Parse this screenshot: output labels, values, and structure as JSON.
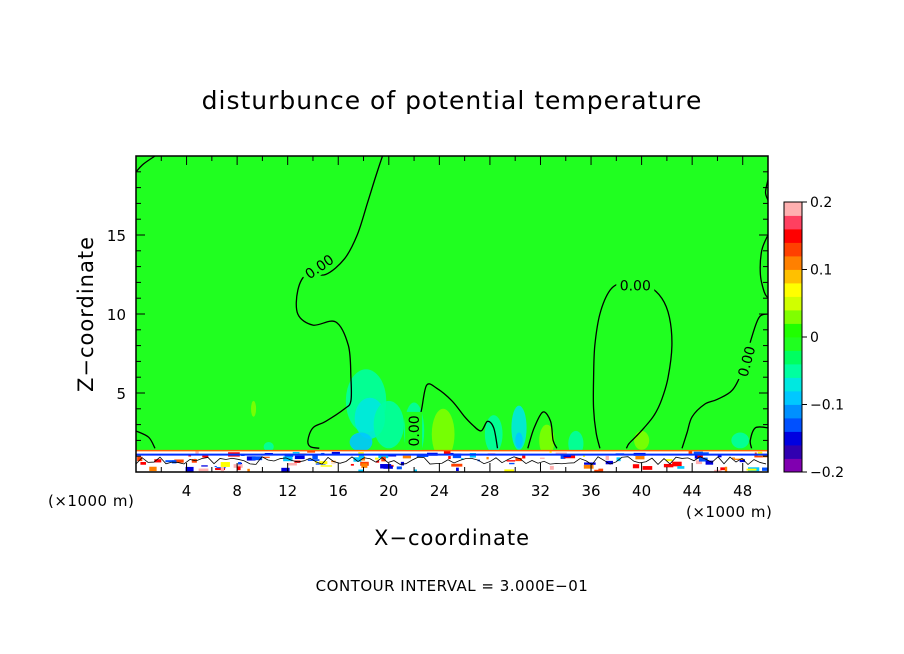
{
  "chart_data": {
    "type": "heatmap",
    "title": "disturbunce of potential temperature",
    "xlabel": "X−coordinate",
    "ylabel": "Z−coordinate",
    "x_unit": "(×1000 m)",
    "z_unit": "(×1000 m)",
    "xlim": [
      0,
      50
    ],
    "ylim": [
      0,
      20
    ],
    "x_ticks": [
      4,
      8,
      12,
      16,
      20,
      24,
      28,
      32,
      36,
      40,
      44,
      48
    ],
    "y_ticks": [
      5,
      10,
      15
    ],
    "colorbar": {
      "min": -0.2,
      "max": 0.2,
      "tick_values": [
        0.2,
        0.1,
        0,
        -0.1,
        -0.2
      ],
      "tick_labels": [
        "0.2",
        "0.1",
        "0",
        "−0.1",
        "−0.2"
      ],
      "colors": [
        "#8000b0",
        "#3000b0",
        "#0000e0",
        "#0050ff",
        "#0090ff",
        "#00c8ff",
        "#00e8e0",
        "#00ffa0",
        "#00ff60",
        "#20ff20",
        "#20ff00",
        "#80ff00",
        "#d0ff00",
        "#ffff00",
        "#ffc000",
        "#ff8000",
        "#ff4000",
        "#ff0000",
        "#ff4060",
        "#ffb0b0"
      ]
    },
    "background_color": "#20ff20",
    "contour_interval": "CONTOUR INTERVAL = 3.000E−01",
    "contour_labels": [
      {
        "text": "0.00",
        "x": 14.5,
        "z": 13.0,
        "angle": -35
      },
      {
        "text": "0.00",
        "x": 39.5,
        "z": 11.8,
        "angle": 0
      },
      {
        "text": "0.00",
        "x": 48.3,
        "z": 7.0,
        "angle": -75
      },
      {
        "text": "0.00",
        "x": 22.0,
        "z": 2.6,
        "angle": -90
      }
    ],
    "contours_zero": [
      [
        [
          0,
          19.0
        ],
        [
          0.6,
          19.5
        ],
        [
          1.5,
          20
        ]
      ],
      [
        [
          1.5,
          1.5
        ],
        [
          1.0,
          2.2
        ],
        [
          0,
          2.6
        ]
      ],
      [
        [
          19.5,
          20
        ],
        [
          19.0,
          18.8
        ],
        [
          18.3,
          17.0
        ],
        [
          17.5,
          15.0
        ],
        [
          16.5,
          13.5
        ],
        [
          15.0,
          12.5
        ],
        [
          13.5,
          12.5
        ],
        [
          12.8,
          11.5
        ],
        [
          12.8,
          10.0
        ],
        [
          14.0,
          9.3
        ],
        [
          15.8,
          9.5
        ],
        [
          16.8,
          8.0
        ],
        [
          17.0,
          6.0
        ],
        [
          17.0,
          4.5
        ],
        [
          16.5,
          4.0
        ],
        [
          15.0,
          3.2
        ],
        [
          14.0,
          2.8
        ],
        [
          13.6,
          2.0
        ],
        [
          13.8,
          1.6
        ],
        [
          14.5,
          1.5
        ]
      ],
      [
        [
          21.8,
          1.5
        ],
        [
          22.2,
          2.5
        ],
        [
          22.6,
          4.0
        ],
        [
          23.0,
          5.5
        ],
        [
          23.8,
          5.3
        ],
        [
          25.0,
          4.5
        ],
        [
          26.0,
          3.5
        ],
        [
          26.6,
          3.0
        ],
        [
          27.3,
          2.6
        ],
        [
          27.8,
          3.2
        ],
        [
          28.3,
          2.8
        ],
        [
          28.6,
          1.5
        ]
      ],
      [
        [
          31.0,
          1.5
        ],
        [
          31.5,
          2.8
        ],
        [
          32.2,
          3.8
        ],
        [
          32.8,
          3.2
        ],
        [
          33.0,
          2.0
        ],
        [
          33.3,
          1.5
        ]
      ],
      [
        [
          36.7,
          1.5
        ],
        [
          36.4,
          2.5
        ],
        [
          36.2,
          4.0
        ],
        [
          36.2,
          6.0
        ],
        [
          36.3,
          8.0
        ],
        [
          36.7,
          10.0
        ],
        [
          37.5,
          11.5
        ],
        [
          38.5,
          12.0
        ],
        [
          39.5,
          12.0
        ],
        [
          40.5,
          11.8
        ],
        [
          41.6,
          11.0
        ],
        [
          42.2,
          9.8
        ],
        [
          42.4,
          8.0
        ],
        [
          42.1,
          6.0
        ],
        [
          41.6,
          4.6
        ],
        [
          41.0,
          3.6
        ],
        [
          40.2,
          2.8
        ],
        [
          39.5,
          2.2
        ],
        [
          39.0,
          1.8
        ],
        [
          38.8,
          1.5
        ]
      ],
      [
        [
          43.2,
          1.5
        ],
        [
          43.6,
          2.5
        ],
        [
          44.0,
          3.5
        ],
        [
          45.0,
          4.3
        ],
        [
          46.0,
          4.6
        ],
        [
          47.2,
          5.2
        ],
        [
          48.0,
          6.5
        ],
        [
          48.7,
          8.5
        ],
        [
          49.3,
          9.8
        ],
        [
          50,
          10.0
        ]
      ],
      [
        [
          50,
          2.8
        ],
        [
          49.0,
          2.8
        ],
        [
          48.6,
          2.0
        ],
        [
          48.7,
          1.5
        ]
      ],
      [
        [
          50,
          15.0
        ],
        [
          49.5,
          14.0
        ],
        [
          49.4,
          12.5
        ],
        [
          49.7,
          11.4
        ],
        [
          50,
          11.0
        ]
      ],
      [
        [
          50,
          18.5
        ],
        [
          49.8,
          17.7
        ],
        [
          50,
          17.2
        ]
      ]
    ],
    "anomalies": [
      {
        "x": 18.2,
        "z": 4.5,
        "rx": 1.6,
        "rz": 2.0,
        "color": "#00ffa0"
      },
      {
        "x": 18.5,
        "z": 3.4,
        "rx": 1.2,
        "rz": 1.3,
        "color": "#00e8e0"
      },
      {
        "x": 17.8,
        "z": 1.9,
        "rx": 0.9,
        "rz": 0.6,
        "color": "#00c8ff"
      },
      {
        "x": 20.0,
        "z": 3.0,
        "rx": 1.2,
        "rz": 1.5,
        "color": "#00ffa0"
      },
      {
        "x": 22.0,
        "z": 2.6,
        "rx": 0.8,
        "rz": 1.8,
        "color": "#00ffa0"
      },
      {
        "x": 24.3,
        "z": 2.4,
        "rx": 0.9,
        "rz": 1.6,
        "color": "#80ff00"
      },
      {
        "x": 28.3,
        "z": 2.4,
        "rx": 0.7,
        "rz": 1.2,
        "color": "#00ffa0"
      },
      {
        "x": 30.3,
        "z": 2.8,
        "rx": 0.6,
        "rz": 1.4,
        "color": "#00e8e0"
      },
      {
        "x": 30.3,
        "z": 2.0,
        "rx": 0.3,
        "rz": 0.5,
        "color": "#00c8ff"
      },
      {
        "x": 32.5,
        "z": 2.0,
        "rx": 0.6,
        "rz": 1.0,
        "color": "#80ff00"
      },
      {
        "x": 34.8,
        "z": 1.8,
        "rx": 0.6,
        "rz": 0.8,
        "color": "#00ffa0"
      },
      {
        "x": 40.0,
        "z": 2.0,
        "rx": 0.6,
        "rz": 0.6,
        "color": "#80ff00"
      },
      {
        "x": 9.3,
        "z": 4.0,
        "rx": 0.2,
        "rz": 0.5,
        "color": "#80ff00"
      },
      {
        "x": 10.5,
        "z": 1.6,
        "rx": 0.4,
        "rz": 0.3,
        "color": "#00ffa0"
      },
      {
        "x": 47.8,
        "z": 2.0,
        "rx": 0.7,
        "rz": 0.5,
        "color": "#00ffa0"
      }
    ]
  }
}
